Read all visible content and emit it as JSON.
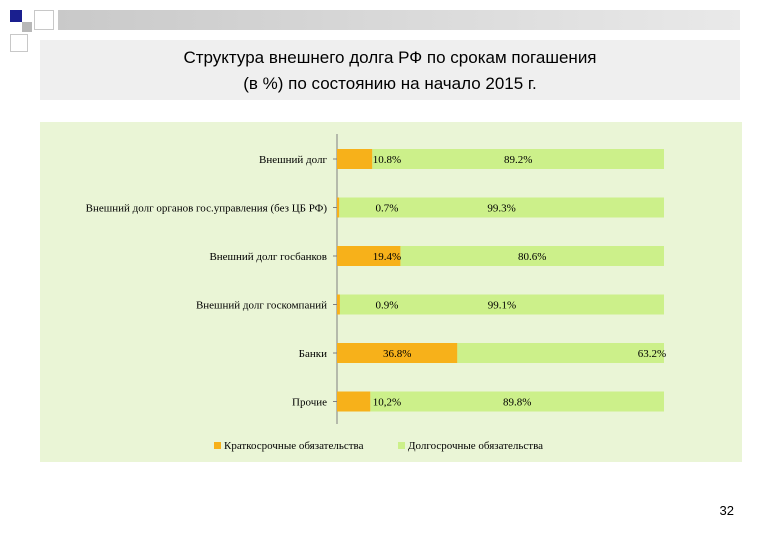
{
  "colors": {
    "short": "#f7b11a",
    "long": "#ccf08a",
    "deco_blue": "#1a1f8f",
    "deco_gray": "#b8b8b8",
    "plot_bg": "#eaf5d6"
  },
  "slide": {
    "title_line1": "Структура внешнего долга РФ по срокам погашения",
    "title_line2": "(в %) по состоянию на начало 2015 г.",
    "page_number": "32"
  },
  "chart_data": {
    "type": "bar",
    "orientation": "horizontal",
    "stacked": true,
    "categories": [
      "Внешний долг",
      "Внешний долг органов гос.управления (без ЦБ РФ)",
      "Внешний долг госбанков",
      "Внешний долг госкомпаний",
      "Банки",
      "Прочие"
    ],
    "series": [
      {
        "name": "Краткосрочные обязательства",
        "values": [
          10.8,
          0.7,
          19.4,
          0.9,
          36.8,
          10.2
        ],
        "labels": [
          "10.8%",
          "0.7%",
          "19.4%",
          "0.9%",
          "36.8%",
          "10,2%"
        ]
      },
      {
        "name": "Долгосрочные обязательства",
        "values": [
          89.2,
          99.3,
          80.6,
          99.1,
          63.2,
          89.8
        ],
        "labels": [
          "89.2%",
          "99.3%",
          "80.6%",
          "99.1%",
          "63.2%",
          "89.8%"
        ]
      }
    ],
    "xlim": [
      0,
      100
    ],
    "legend_position": "bottom",
    "grid": false
  }
}
